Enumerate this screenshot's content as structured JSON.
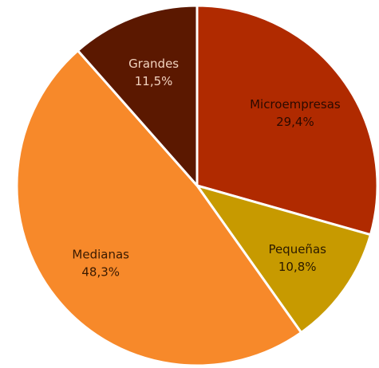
{
  "chart_data": {
    "type": "pie",
    "start_angle_deg": 0,
    "direction": "clockwise",
    "slices": [
      {
        "name": "Microempresas",
        "value": 29.4,
        "label": "29,4%",
        "color": "#b02a00",
        "label_color": "#2b0a00"
      },
      {
        "name": "Pequeñas",
        "value": 10.8,
        "label": "10,8%",
        "color": "#c79a00",
        "label_color": "#2b1a00"
      },
      {
        "name": "Medianas",
        "value": 48.3,
        "label": "48,3%",
        "color": "#f7892a",
        "label_color": "#3a1a00"
      },
      {
        "name": "Grandes",
        "value": 11.5,
        "label": "11,5%",
        "color": "#5b1800",
        "label_color": "#f2d3bf"
      }
    ]
  }
}
